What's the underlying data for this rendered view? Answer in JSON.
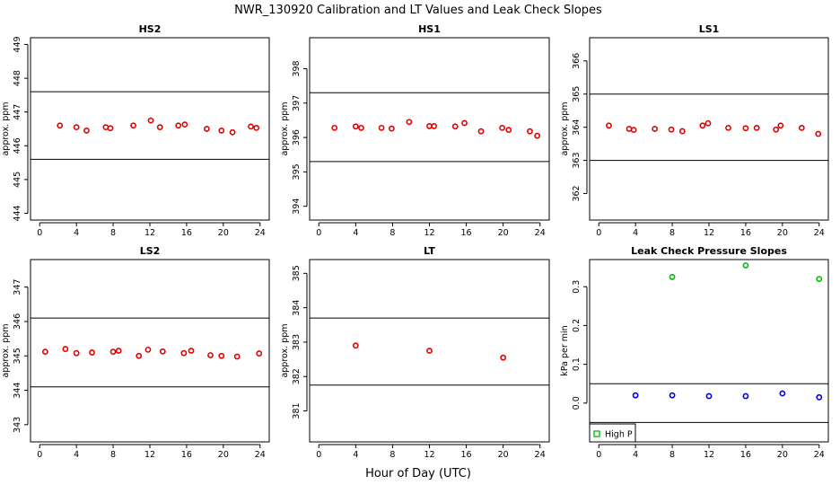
{
  "figure": {
    "title": "NWR_130920  Calibration and LT Values and Leak Check Slopes",
    "xlabel": "Hour of Day (UTC)"
  },
  "chart_data": [
    {
      "type": "scatter",
      "title": "HS2",
      "ylabel": "approx. ppm",
      "xlim": [
        -1,
        25
      ],
      "ylim": [
        443.8,
        449.2
      ],
      "xticks": [
        0,
        4,
        8,
        12,
        16,
        20,
        24
      ],
      "yticks": [
        444,
        445,
        446,
        447,
        448,
        449
      ],
      "hlines": [
        447.6,
        445.6
      ],
      "series": [
        {
          "marker": "circle",
          "color": "#e00000",
          "x": [
            2.2,
            4.0,
            5.1,
            7.2,
            7.7,
            10.2,
            12.1,
            13.1,
            15.1,
            15.8,
            18.2,
            19.8,
            21.0,
            23.0,
            23.6
          ],
          "y": [
            446.6,
            446.55,
            446.45,
            446.55,
            446.52,
            446.6,
            446.75,
            446.55,
            446.6,
            446.63,
            446.5,
            446.45,
            446.4,
            446.57,
            446.53
          ]
        }
      ]
    },
    {
      "type": "scatter",
      "title": "HS1",
      "ylabel": "approx. ppm",
      "xlim": [
        -1,
        25
      ],
      "ylim": [
        393.6,
        398.9
      ],
      "xticks": [
        0,
        4,
        8,
        12,
        16,
        20,
        24
      ],
      "yticks": [
        394,
        395,
        396,
        397,
        398
      ],
      "hlines": [
        397.3,
        395.3
      ],
      "series": [
        {
          "marker": "circle",
          "color": "#e00000",
          "x": [
            1.7,
            4.0,
            4.6,
            6.8,
            7.9,
            9.8,
            12.0,
            12.5,
            14.8,
            15.8,
            17.6,
            19.9,
            20.6,
            22.9,
            23.7
          ],
          "y": [
            396.28,
            396.32,
            396.28,
            396.28,
            396.26,
            396.45,
            396.33,
            396.33,
            396.32,
            396.42,
            396.18,
            396.28,
            396.22,
            396.18,
            396.05
          ]
        }
      ]
    },
    {
      "type": "scatter",
      "title": "LS1",
      "ylabel": "approx. ppm",
      "xlim": [
        -1,
        25
      ],
      "ylim": [
        361.2,
        366.7
      ],
      "xticks": [
        0,
        4,
        8,
        12,
        16,
        20,
        24
      ],
      "yticks": [
        362,
        363,
        364,
        365,
        366
      ],
      "hlines": [
        365.0,
        363.0
      ],
      "series": [
        {
          "marker": "circle",
          "color": "#e00000",
          "x": [
            1.1,
            3.3,
            3.8,
            6.1,
            7.9,
            9.1,
            11.3,
            11.9,
            14.1,
            16.0,
            17.2,
            19.3,
            19.8,
            22.1,
            23.9
          ],
          "y": [
            364.05,
            363.95,
            363.92,
            363.95,
            363.93,
            363.88,
            364.05,
            364.12,
            363.98,
            363.97,
            363.98,
            363.93,
            364.05,
            363.98,
            363.8
          ]
        }
      ]
    },
    {
      "type": "scatter",
      "title": "LS2",
      "ylabel": "approx. ppm",
      "xlim": [
        -1,
        25
      ],
      "ylim": [
        342.5,
        347.8
      ],
      "xticks": [
        0,
        4,
        8,
        12,
        16,
        20,
        24
      ],
      "yticks": [
        343,
        344,
        345,
        346,
        347
      ],
      "hlines": [
        346.1,
        344.1
      ],
      "series": [
        {
          "marker": "circle",
          "color": "#e00000",
          "x": [
            0.6,
            2.8,
            4.0,
            5.7,
            8.0,
            8.6,
            10.8,
            11.8,
            13.4,
            15.7,
            16.5,
            18.6,
            19.8,
            21.5,
            23.9
          ],
          "y": [
            345.12,
            345.2,
            345.08,
            345.1,
            345.12,
            345.15,
            345.0,
            345.18,
            345.13,
            345.08,
            345.15,
            345.02,
            345.0,
            344.98,
            345.07
          ]
        }
      ]
    },
    {
      "type": "scatter",
      "title": "LT",
      "ylabel": "approx. ppm",
      "xlim": [
        -1,
        25
      ],
      "ylim": [
        380.1,
        385.4
      ],
      "xticks": [
        0,
        4,
        8,
        12,
        16,
        20,
        24
      ],
      "yticks": [
        381,
        382,
        383,
        384,
        385
      ],
      "hlines": [
        383.7,
        381.75
      ],
      "series": [
        {
          "marker": "circle",
          "color": "#e00000",
          "x": [
            4.0,
            12.0,
            20.0
          ],
          "y": [
            382.9,
            382.75,
            382.55
          ]
        }
      ]
    },
    {
      "type": "scatter",
      "title": "Leak Check Pressure Slopes",
      "ylabel": "kPa per min",
      "xlim": [
        -1,
        25
      ],
      "ylim": [
        -0.1,
        0.37
      ],
      "xticks": [
        0,
        4,
        8,
        12,
        16,
        20,
        24
      ],
      "yticks": [
        0.0,
        0.1,
        0.2,
        0.3
      ],
      "hlines": [
        0.05,
        -0.05
      ],
      "legend": {
        "position": "bottom-left",
        "entries": [
          {
            "label": "High P",
            "color": "#00bb00",
            "marker": "square"
          }
        ]
      },
      "series": [
        {
          "name": "High P",
          "marker": "circle",
          "color": "#00bb00",
          "x": [
            8.0,
            16.0,
            24.0
          ],
          "y": [
            0.325,
            0.355,
            0.32
          ]
        },
        {
          "marker": "circle",
          "color": "#0000dd",
          "x": [
            4.0,
            8.0,
            12.0,
            16.0,
            20.0,
            24.0
          ],
          "y": [
            0.02,
            0.02,
            0.018,
            0.018,
            0.025,
            0.015
          ]
        }
      ]
    }
  ]
}
